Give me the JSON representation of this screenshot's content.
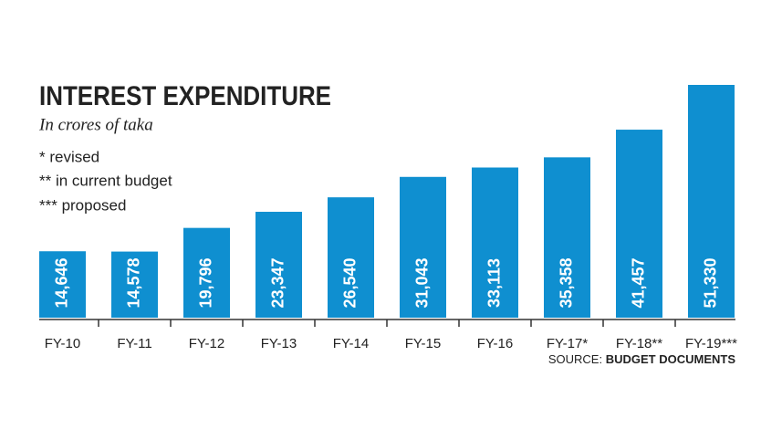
{
  "chart_data": {
    "type": "bar",
    "title": "INTEREST EXPENDITURE",
    "subtitle": "In crores of taka",
    "notes": [
      "* revised",
      "** in current budget",
      "*** proposed"
    ],
    "categories": [
      "FY-10",
      "FY-11",
      "FY-12",
      "FY-13",
      "FY-14",
      "FY-15",
      "FY-16",
      "FY-17*",
      "FY-18**",
      "FY-19***"
    ],
    "values": [
      14646,
      14578,
      19796,
      23347,
      26540,
      31043,
      33113,
      35358,
      41457,
      51330
    ],
    "value_labels": [
      "14,646",
      "14,578",
      "19,796",
      "23,347",
      "26,540",
      "31,043",
      "33,113",
      "35,358",
      "41,457",
      "51,330"
    ],
    "color": "#0f8fd0",
    "source_label": "SOURCE:",
    "source": "BUDGET DOCUMENTS"
  }
}
